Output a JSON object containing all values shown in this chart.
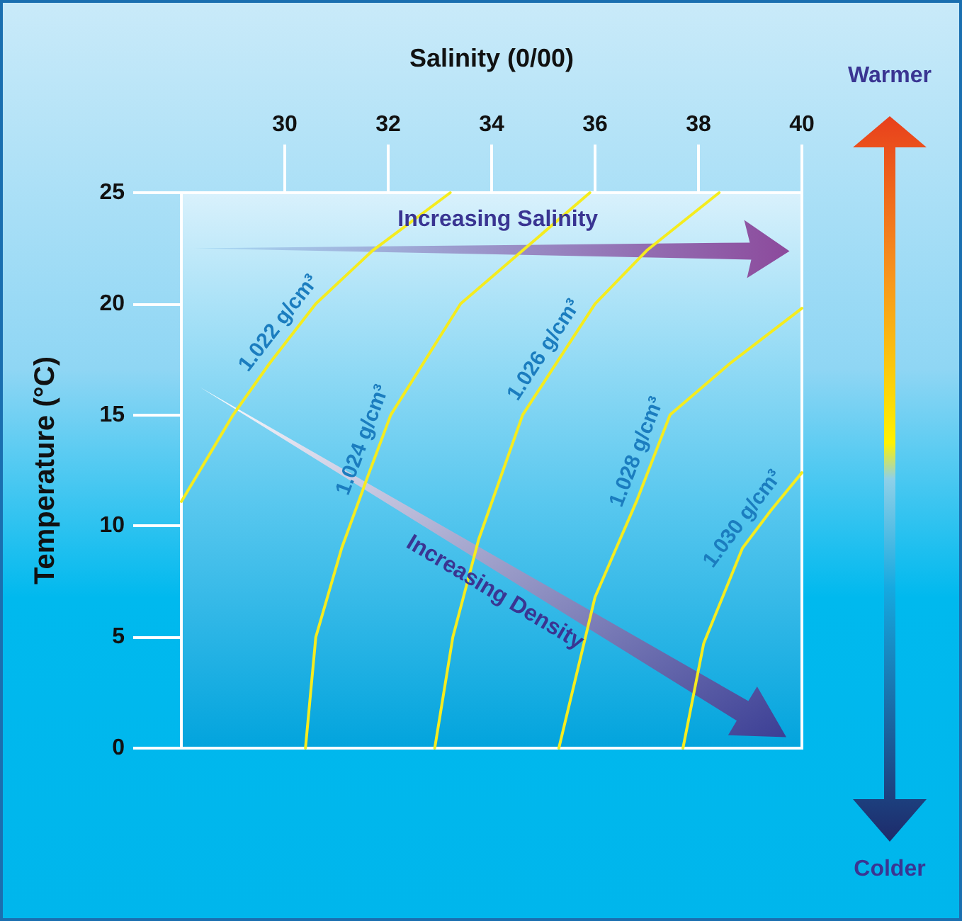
{
  "chart_data": {
    "type": "line",
    "xlabel": "Salinity (0/00)",
    "ylabel": "Temperature (°C)",
    "xlim": [
      28,
      40
    ],
    "xticks": [
      30,
      32,
      34,
      36,
      38,
      40
    ],
    "ylim": [
      0,
      25
    ],
    "yticks": [
      0,
      5,
      10,
      15,
      20,
      25
    ],
    "grid": false,
    "legend": false,
    "marker": "none",
    "line_style": "solid",
    "annotations": [
      "Increasing Salinity",
      "Increasing Density",
      "Warmer",
      "Colder"
    ],
    "series": [
      {
        "name": "1.022 g/cm³",
        "color": "#f5ec1e",
        "x": [
          28,
          29,
          29.7,
          30.6,
          31.7,
          33.2
        ],
        "values": [
          11.1,
          15,
          17.3,
          20,
          22.4,
          25
        ]
      },
      {
        "name": "1.024 g/cm³",
        "color": "#f5ec1e",
        "x": [
          30.4,
          30.6,
          31.1,
          31.6,
          32.05,
          33.4,
          34.6,
          35.9
        ],
        "values": [
          0,
          5,
          9,
          12.2,
          15,
          20,
          22.4,
          25
        ]
      },
      {
        "name": "1.026 g/cm³",
        "color": "#f5ec1e",
        "x": [
          32.9,
          33.25,
          33.75,
          34.6,
          36.0,
          37.0,
          38.4
        ],
        "values": [
          0,
          5,
          9.4,
          15,
          20,
          22.4,
          25
        ]
      },
      {
        "name": "1.028 g/cm³",
        "color": "#f5ec1e",
        "x": [
          35.3,
          36.0,
          36.8,
          37.45,
          38.6,
          40
        ],
        "values": [
          0,
          6.8,
          11.1,
          15,
          17.3,
          19.8
        ]
      },
      {
        "name": "1.030 g/cm³",
        "color": "#f5ec1e",
        "x": [
          37.7,
          38.1,
          38.85,
          39.4,
          40
        ],
        "values": [
          0,
          4.7,
          9,
          10.7,
          12.4
        ]
      }
    ]
  }
}
